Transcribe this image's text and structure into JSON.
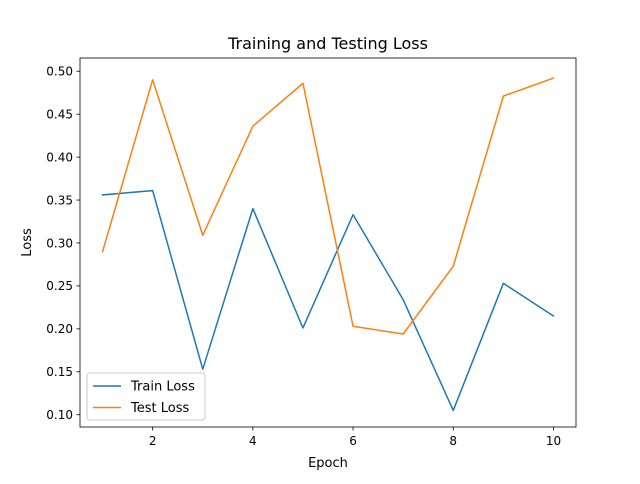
{
  "chart_data": {
    "type": "line",
    "title": "Training and Testing Loss",
    "xlabel": "Epoch",
    "ylabel": "Loss",
    "x": [
      1,
      2,
      3,
      4,
      5,
      6,
      7,
      8,
      9,
      10
    ],
    "xlim": [
      0.55,
      10.45
    ],
    "ylim": [
      0.0857,
      0.5154
    ],
    "xticks": [
      2,
      4,
      6,
      8,
      10
    ],
    "xtick_labels": [
      "2",
      "4",
      "6",
      "8",
      "10"
    ],
    "yticks": [
      0.1,
      0.15,
      0.2,
      0.25,
      0.3,
      0.35,
      0.4,
      0.45,
      0.5
    ],
    "ytick_labels": [
      "0.10",
      "0.15",
      "0.20",
      "0.25",
      "0.30",
      "0.35",
      "0.40",
      "0.45",
      "0.50"
    ],
    "grid": false,
    "legend_position": "lower-left",
    "series": [
      {
        "name": "Train Loss",
        "color": "#1f77b4",
        "values": [
          0.356,
          0.361,
          0.153,
          0.34,
          0.201,
          0.333,
          0.234,
          0.105,
          0.253,
          0.215
        ]
      },
      {
        "name": "Test Loss",
        "color": "#ff7f0e",
        "values": [
          0.29,
          0.49,
          0.309,
          0.436,
          0.486,
          0.203,
          0.194,
          0.273,
          0.471,
          0.492
        ]
      }
    ]
  }
}
